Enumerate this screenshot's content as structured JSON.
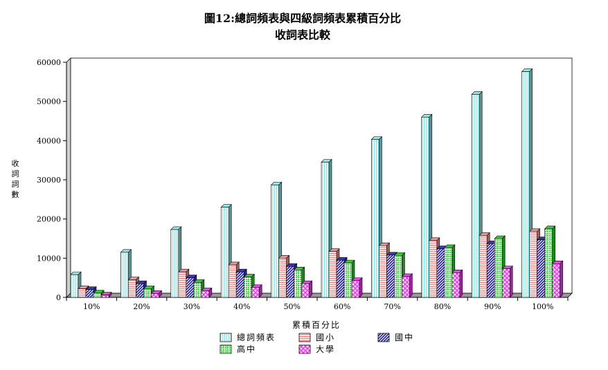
{
  "chart_data": {
    "type": "bar",
    "title": "圖12:總詞頻表與四級詞頻表累積百分比",
    "subtitle": "收詞表比較",
    "xlabel": "累積百分比",
    "ylabel": "收詞詞數",
    "ylim": [
      0,
      60000
    ],
    "yticks": [
      "0",
      "10000",
      "20000",
      "30000",
      "40000",
      "50000",
      "60000"
    ],
    "grid": false,
    "legend": "bottom",
    "categories": [
      "10%",
      "20%",
      "30%",
      "40%",
      "50%",
      "60%",
      "70%",
      "80%",
      "90%",
      "100%"
    ],
    "series": [
      {
        "name": "總詞頻表",
        "color": "#9ff3f3",
        "pattern": "vertical",
        "values": [
          5800,
          11500,
          17300,
          23000,
          28700,
          34500,
          40300,
          46000,
          51800,
          57600
        ]
      },
      {
        "name": "國小",
        "color": "#ff9e9e",
        "pattern": "horizontal",
        "values": [
          2200,
          4500,
          6500,
          8300,
          10000,
          11700,
          13200,
          14500,
          15800,
          16800
        ]
      },
      {
        "name": "國中",
        "color": "#3a3acc",
        "pattern": "diagonal",
        "values": [
          2000,
          3500,
          5000,
          6500,
          7900,
          9500,
          10800,
          12400,
          13700,
          14700
        ]
      },
      {
        "name": "高中",
        "color": "#33dd33",
        "pattern": "grid",
        "values": [
          1100,
          2200,
          3800,
          5200,
          7000,
          8800,
          10700,
          12700,
          15000,
          17500
        ]
      },
      {
        "name": "大學",
        "color": "#ff44ff",
        "pattern": "cross",
        "values": [
          600,
          1000,
          1700,
          2500,
          3500,
          4300,
          5300,
          6300,
          7300,
          8600
        ]
      }
    ]
  }
}
